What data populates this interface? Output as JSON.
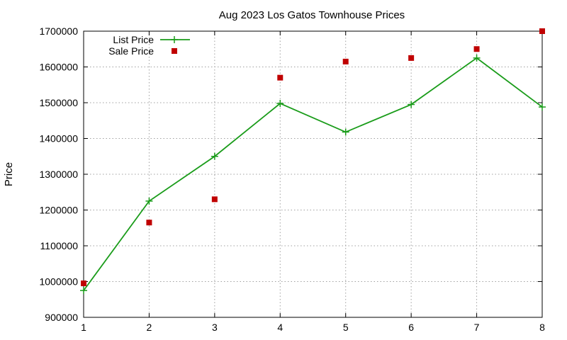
{
  "chart_data": {
    "type": "line",
    "title": "Aug 2023 Los Gatos Townhouse Prices",
    "xlabel": "",
    "ylabel": "Price",
    "x": [
      1,
      2,
      3,
      4,
      5,
      6,
      7,
      8
    ],
    "xlim": [
      1,
      8
    ],
    "ylim": [
      900000,
      1700000
    ],
    "xticks": [
      "1",
      "2",
      "3",
      "4",
      "5",
      "6",
      "7",
      "8"
    ],
    "yticks": [
      "900000",
      "1000000",
      "1100000",
      "1200000",
      "1300000",
      "1400000",
      "1500000",
      "1600000",
      "1700000"
    ],
    "grid": true,
    "legend_position": "top-left",
    "series": [
      {
        "name": "List Price",
        "style": "line-with-plus-markers",
        "color": "#1a9c1a",
        "values": [
          975000,
          1225000,
          1350000,
          1498000,
          1418000,
          1495000,
          1625000,
          1488000
        ]
      },
      {
        "name": "Sale Price",
        "style": "square-markers",
        "color": "#c00000",
        "values": [
          995000,
          1165000,
          1230000,
          1570000,
          1615000,
          1625000,
          1650000,
          1700000
        ]
      }
    ]
  }
}
